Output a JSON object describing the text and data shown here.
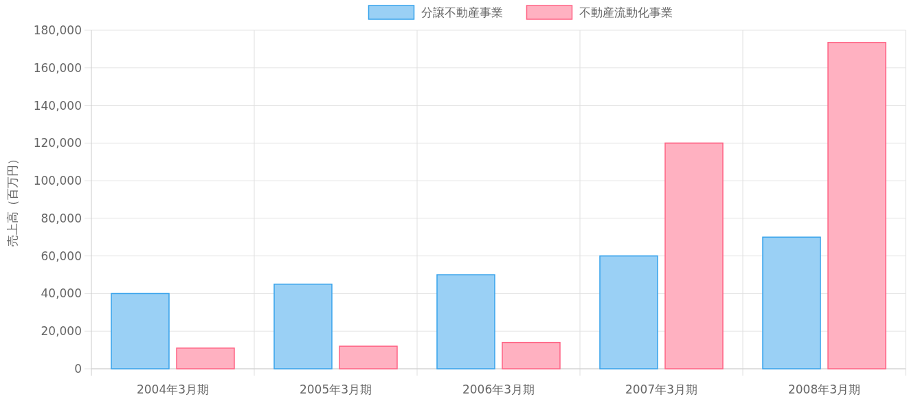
{
  "chart_data": {
    "type": "bar",
    "ylabel": "売上高（百万円）",
    "categories": [
      "2004年3月期",
      "2005年3月期",
      "2006年3月期",
      "2007年3月期",
      "2008年3月期"
    ],
    "series": [
      {
        "name": "分譲不動産事業",
        "color": "#9ad0f5",
        "values": [
          40000,
          45000,
          50000,
          60000,
          70000
        ]
      },
      {
        "name": "不動産流動化事業",
        "color": "#ffb1c1",
        "values": [
          11000,
          12000,
          14000,
          120000,
          173500
        ]
      }
    ],
    "ylim": [
      0,
      180000
    ],
    "yticks": [
      {
        "value": 0,
        "label": "0"
      },
      {
        "value": 20000,
        "label": "20,000"
      },
      {
        "value": 40000,
        "label": "40,000"
      },
      {
        "value": 60000,
        "label": "60,000"
      },
      {
        "value": 80000,
        "label": "80,000"
      },
      {
        "value": 100000,
        "label": "100,000"
      },
      {
        "value": 120000,
        "label": "120,000"
      },
      {
        "value": 140000,
        "label": "140,000"
      },
      {
        "value": 160000,
        "label": "160,000"
      },
      {
        "value": 180000,
        "label": "180,000"
      }
    ],
    "grid": true,
    "legend": "top"
  }
}
